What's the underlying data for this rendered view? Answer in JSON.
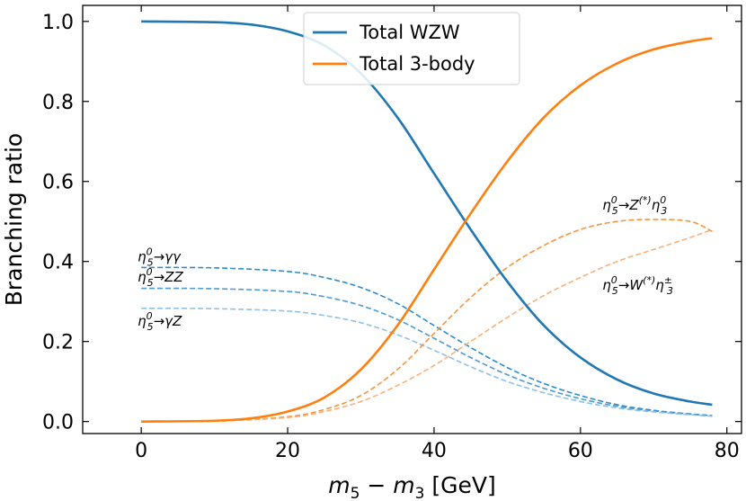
{
  "chart_data": {
    "type": "line",
    "xlabel": "m5 − m3 [GeV]",
    "xlabel_parts": {
      "m": "m",
      "sub_a": "5",
      "minus": " − ",
      "m2": "m",
      "sub_b": "3",
      "unit": " [GeV]"
    },
    "ylabel": "Branching ratio",
    "xlim": [
      -8,
      82
    ],
    "ylim": [
      -0.03,
      1.04
    ],
    "xticks": [
      "0",
      "20",
      "40",
      "60",
      "80"
    ],
    "xtick_values": [
      0,
      20,
      40,
      60,
      80
    ],
    "yticks": [
      "0.0",
      "0.2",
      "0.4",
      "0.6",
      "0.8",
      "1.0"
    ],
    "ytick_values": [
      0.0,
      0.2,
      0.4,
      0.6,
      0.8,
      1.0
    ],
    "legend_position": "top-center",
    "grid": false,
    "series": [
      {
        "name": "Total WZW",
        "color": "#1f77b4",
        "style": "solid",
        "legend": true,
        "x": [
          0,
          10,
          15,
          20,
          25,
          30,
          35,
          40,
          45,
          50,
          55,
          60,
          65,
          70,
          75,
          78
        ],
        "y": [
          1.0,
          0.998,
          0.992,
          0.975,
          0.94,
          0.87,
          0.76,
          0.62,
          0.48,
          0.35,
          0.24,
          0.16,
          0.105,
          0.07,
          0.05,
          0.042
        ]
      },
      {
        "name": "Total 3-body",
        "color": "#ff7f0e",
        "style": "solid",
        "legend": true,
        "x": [
          0,
          10,
          15,
          20,
          25,
          30,
          35,
          40,
          45,
          50,
          55,
          60,
          65,
          70,
          75,
          78
        ],
        "y": [
          0.0,
          0.002,
          0.008,
          0.025,
          0.06,
          0.13,
          0.24,
          0.38,
          0.52,
          0.65,
          0.76,
          0.84,
          0.895,
          0.93,
          0.95,
          0.958
        ]
      },
      {
        "name": "η5 → γγ",
        "color": "#2b8bd1",
        "style": "dashed",
        "legend": false,
        "x": [
          0,
          10,
          20,
          25,
          30,
          35,
          40,
          45,
          50,
          55,
          60,
          65,
          70,
          75,
          78
        ],
        "y": [
          0.385,
          0.384,
          0.375,
          0.36,
          0.335,
          0.295,
          0.24,
          0.185,
          0.135,
          0.095,
          0.065,
          0.042,
          0.028,
          0.019,
          0.015
        ]
      },
      {
        "name": "η5 → ZZ",
        "color": "#4c9bd6",
        "style": "dashed",
        "legend": false,
        "x": [
          0,
          10,
          20,
          25,
          30,
          35,
          40,
          45,
          50,
          55,
          60,
          65,
          70,
          75,
          78
        ],
        "y": [
          0.333,
          0.332,
          0.325,
          0.312,
          0.29,
          0.255,
          0.208,
          0.16,
          0.117,
          0.083,
          0.057,
          0.038,
          0.026,
          0.018,
          0.014
        ]
      },
      {
        "name": "η5 → γZ",
        "color": "#8fc0e6",
        "style": "dashed",
        "legend": false,
        "x": [
          0,
          10,
          20,
          25,
          30,
          35,
          40,
          45,
          50,
          55,
          60,
          65,
          70,
          75,
          78
        ],
        "y": [
          0.283,
          0.282,
          0.276,
          0.265,
          0.247,
          0.217,
          0.178,
          0.137,
          0.1,
          0.072,
          0.05,
          0.034,
          0.024,
          0.017,
          0.013
        ]
      },
      {
        "name": "η5 → Z(*) η3",
        "color": "#f39440",
        "style": "dashed",
        "legend": false,
        "x": [
          0,
          10,
          20,
          25,
          30,
          35,
          40,
          45,
          50,
          55,
          60,
          65,
          70,
          75,
          78
        ],
        "y": [
          0.0,
          0.001,
          0.012,
          0.03,
          0.065,
          0.13,
          0.22,
          0.31,
          0.385,
          0.44,
          0.48,
          0.5,
          0.505,
          0.5,
          0.475
        ]
      },
      {
        "name": "η5 → W(*) η3±",
        "color": "#f7b27a",
        "style": "dashed",
        "legend": false,
        "x": [
          0,
          10,
          20,
          25,
          30,
          35,
          40,
          45,
          50,
          55,
          60,
          65,
          70,
          75,
          78
        ],
        "y": [
          0.0,
          0.001,
          0.01,
          0.025,
          0.05,
          0.09,
          0.14,
          0.2,
          0.26,
          0.315,
          0.36,
          0.4,
          0.43,
          0.46,
          0.48
        ]
      }
    ],
    "annotations": [
      {
        "id": "gg",
        "base": "η",
        "sub": "5",
        "sup": "0",
        "rest": "→γγ",
        "rest_sup": "",
        "rest_sub": "",
        "x": -0.5,
        "y": 0.4
      },
      {
        "id": "zz",
        "base": "η",
        "sub": "5",
        "sup": "0",
        "rest": "→ZZ",
        "rest_sup": "",
        "rest_sub": "",
        "x": -0.5,
        "y": 0.35
      },
      {
        "id": "gz",
        "base": "η",
        "sub": "5",
        "sup": "0",
        "rest": "→γZ",
        "rest_sup": "",
        "rest_sub": "",
        "x": -0.5,
        "y": 0.24
      },
      {
        "id": "zeta3",
        "base": "η",
        "sub": "5",
        "sup": "0",
        "rest": "→Z",
        "rest_sup": "(*)",
        "tail": "η",
        "tail_sub": "3",
        "tail_sup": "0",
        "x": 63,
        "y": 0.53
      },
      {
        "id": "weta3",
        "base": "η",
        "sub": "5",
        "sup": "0",
        "rest": "→W",
        "rest_sup": "(*)",
        "tail": "η",
        "tail_sub": "3",
        "tail_sup": "±",
        "x": 63,
        "y": 0.33
      }
    ]
  }
}
